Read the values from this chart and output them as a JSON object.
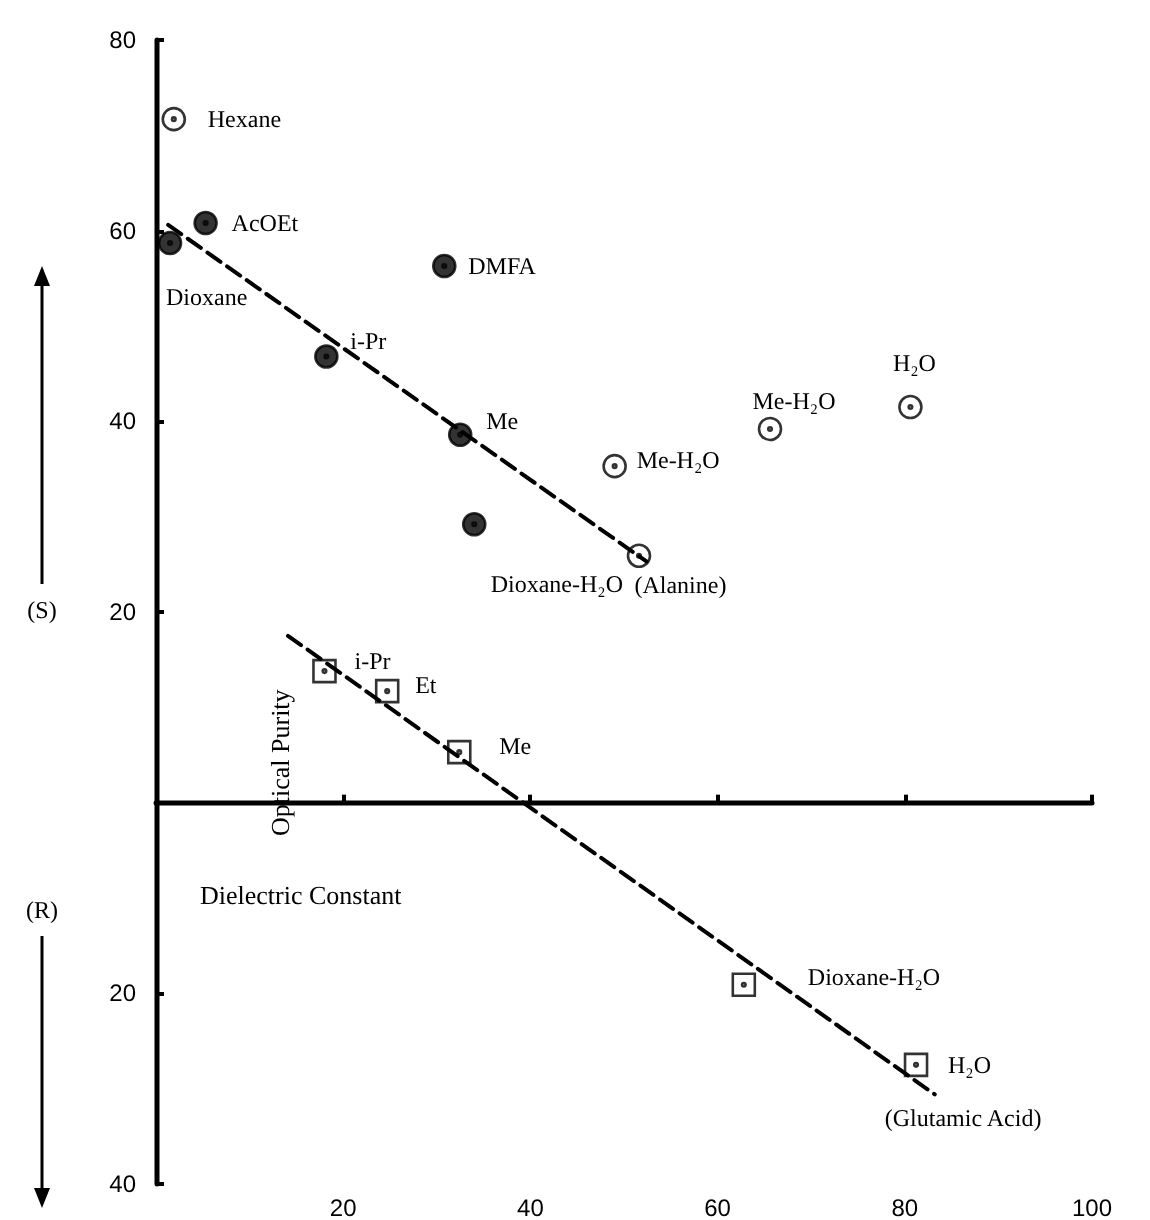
{
  "chart_data": {
    "type": "scatter",
    "xlabel": "Dielectric Constant",
    "ylabel": "Optical Purity",
    "xlim": [
      0,
      100
    ],
    "xticks": [
      20,
      40,
      60,
      80,
      100
    ],
    "ylim": [
      -40,
      80
    ],
    "yticks": [
      80,
      60,
      40,
      20,
      {
        "value": -20,
        "label": "20"
      },
      {
        "value": -40,
        "label": "40"
      }
    ],
    "grid": false,
    "series": [
      {
        "marker": "circle",
        "color": "#000000",
        "x": [
          5.3,
          1.5,
          18.2,
          30.8,
          32.5,
          34.0
        ],
        "values": [
          60.8,
          58.7,
          46.8,
          56.3,
          38.6,
          29.2
        ]
      },
      {
        "marker": "circle",
        "color": "#ffffff",
        "x": [
          1.9,
          49.0,
          51.6,
          65.6,
          80.6
        ],
        "values": [
          71.7,
          35.3,
          25.9,
          39.2,
          41.5
        ]
      },
      {
        "marker": "square",
        "color": "#ffffff",
        "x": [
          18.0,
          24.7,
          32.4,
          62.8,
          81.2
        ],
        "values": [
          13.8,
          11.7,
          5.3,
          -19.1,
          -27.5
        ]
      },
      {
        "type": "line",
        "marker": "none",
        "line_style": "dashed",
        "color": "#000000",
        "x": [
          1.3,
          52.4
        ],
        "values": [
          60.6,
          25.3
        ]
      },
      {
        "type": "line",
        "marker": "none",
        "line_style": "dashed",
        "color": "#000000",
        "x": [
          14.1,
          83.2
        ],
        "values": [
          17.5,
          -30.6
        ]
      }
    ],
    "annotations": [
      "(S)",
      "(R)",
      {
        "text": "Hexane",
        "x": 1.9,
        "y": 71.7
      },
      {
        "text": "AcOEt",
        "x": 5.3,
        "y": 60.8
      },
      {
        "text": "Dioxane",
        "x": 1.5,
        "y": 58.7
      },
      {
        "text": "i-Pr",
        "x": 18.2,
        "y": 46.8
      },
      {
        "text": "DMFA",
        "x": 30.8,
        "y": 56.3
      },
      {
        "text": "Me",
        "x": 32.5,
        "y": 38.6
      },
      {
        "text": "Dioxane-H₂O",
        "x": 51.6,
        "y": 25.9
      },
      {
        "text": "Me-H₂O",
        "x": 49.0,
        "y": 35.3
      },
      {
        "text": "Me-H₂O",
        "x": 65.6,
        "y": 39.2
      },
      {
        "text": "H₂O",
        "x": 80.6,
        "y": 41.5
      },
      {
        "text": "(Alanine)",
        "x": 52.4,
        "y": 25.3
      },
      {
        "text": "i-Pr",
        "x": 18.0,
        "y": 13.8
      },
      {
        "text": "Et",
        "x": 24.7,
        "y": 11.7
      },
      {
        "text": "Me",
        "x": 32.4,
        "y": 5.3
      },
      {
        "text": "Dioxane-H₂O",
        "x": 62.8,
        "y": -19.1
      },
      {
        "text": "H₂O",
        "x": 81.2,
        "y": -27.5
      },
      {
        "text": "(Glutamic Acid)",
        "x": 83.2,
        "y": -30.6
      }
    ]
  }
}
